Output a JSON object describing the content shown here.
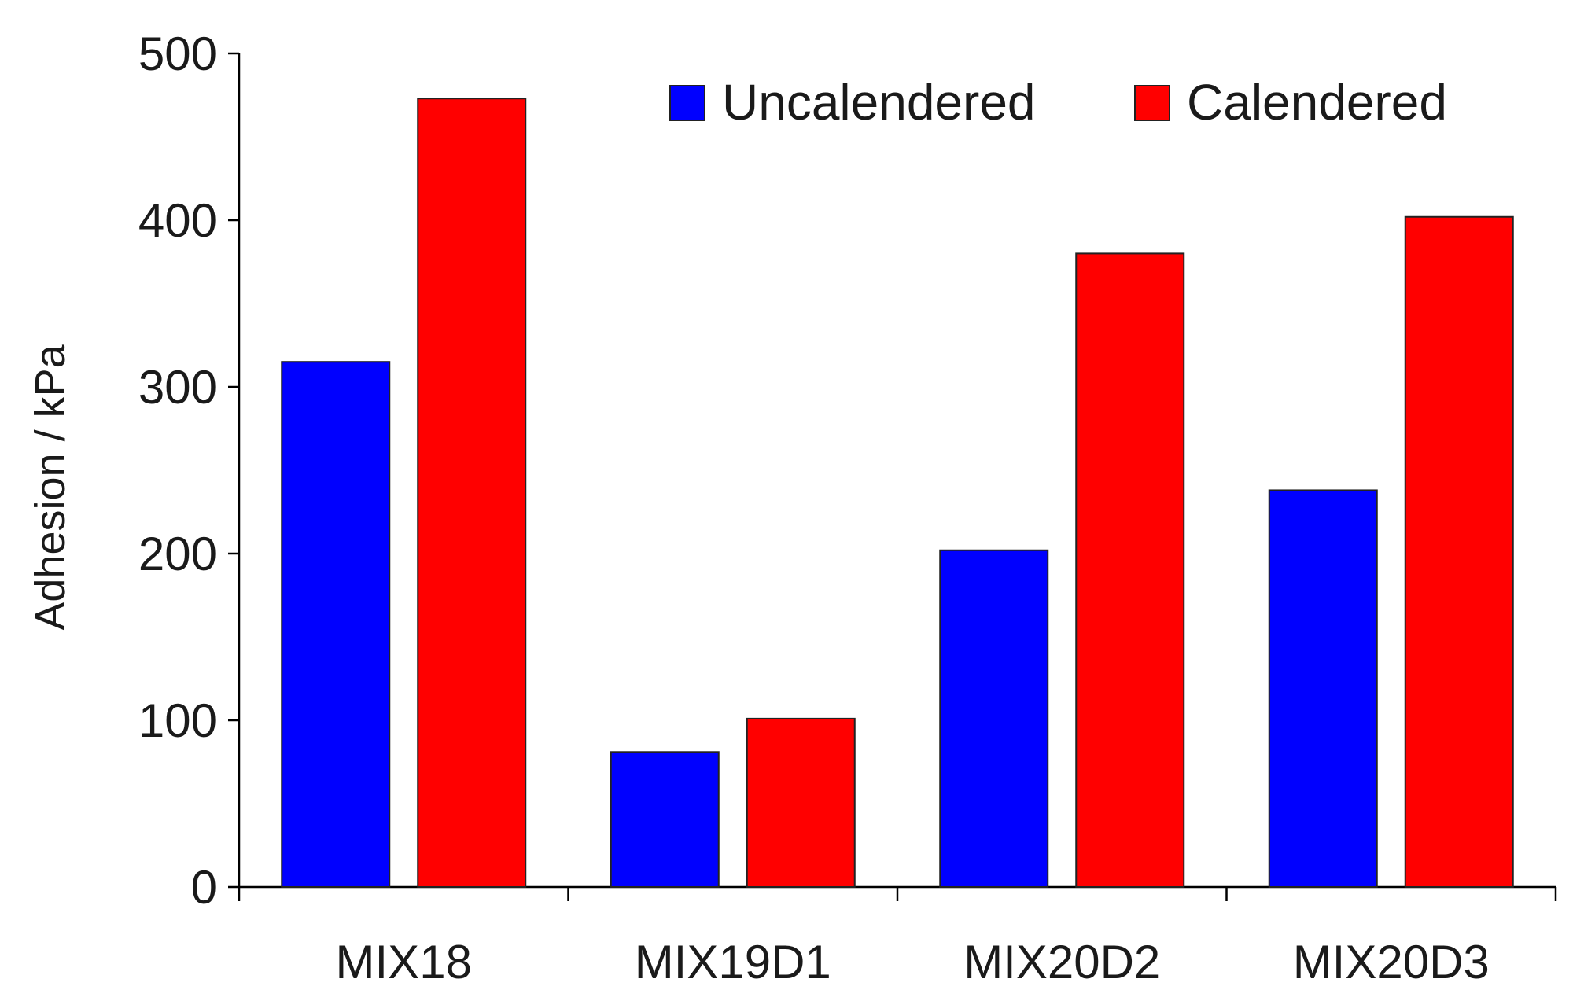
{
  "chart_data": {
    "type": "bar",
    "title": "",
    "xlabel": "",
    "ylabel": "Adhesion / kPa",
    "ylim": [
      0,
      500
    ],
    "yticks": [
      0,
      100,
      200,
      300,
      400,
      500
    ],
    "categories": [
      "MIX18",
      "MIX19D1",
      "MIX20D2",
      "MIX20D3"
    ],
    "series": [
      {
        "name": "Uncalendered",
        "color": "#0000ff",
        "values": [
          315,
          81,
          202,
          238
        ]
      },
      {
        "name": "Calendered",
        "color": "#ff0000",
        "values": [
          473,
          101,
          380,
          402
        ]
      }
    ],
    "grid": false,
    "legend_position": "top-right"
  }
}
